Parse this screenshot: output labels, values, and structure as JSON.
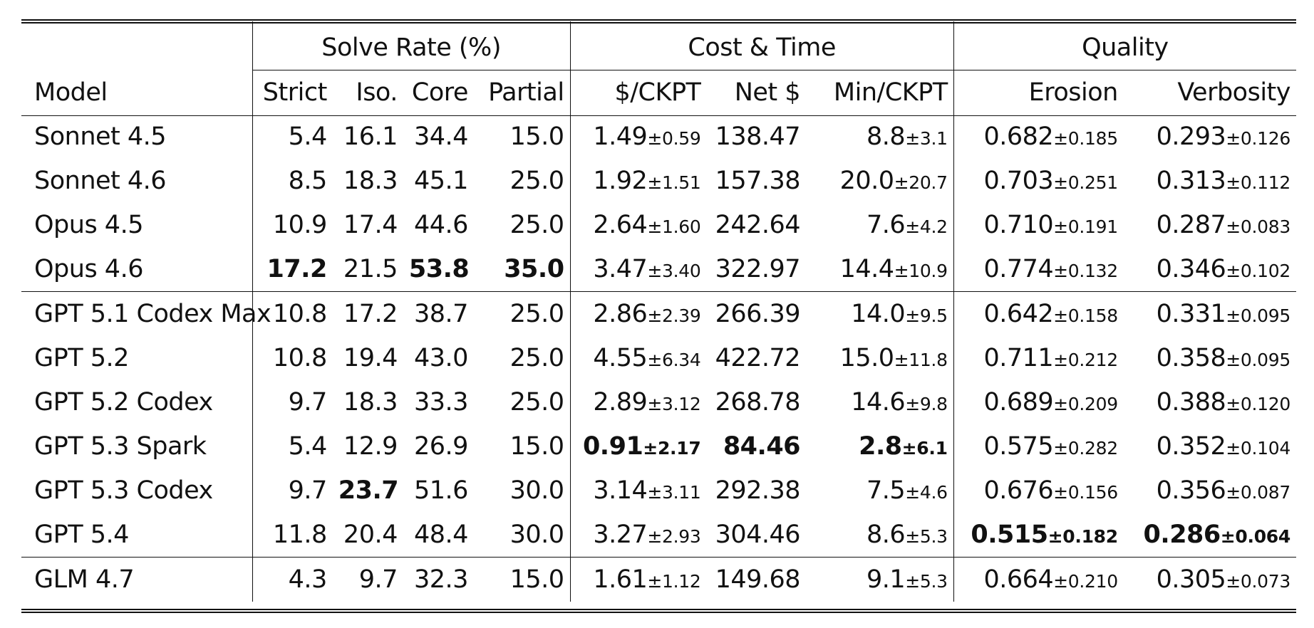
{
  "table": {
    "groups": {
      "solve": "Solve Rate (%)",
      "cost": "Cost & Time",
      "quality": "Quality"
    },
    "headers": {
      "model": "Model",
      "strict": "Strict",
      "iso": "Iso.",
      "core": "Core",
      "partial": "Partial",
      "ckpt_cost": "$/CKPT",
      "net": "Net $",
      "min_ckpt": "Min/CKPT",
      "erosion": "Erosion",
      "verbosity": "Verbosity"
    },
    "rows": [
      {
        "model": "Sonnet 4.5",
        "strict": "5.4",
        "iso": "16.1",
        "core": "34.4",
        "partial": "15.0",
        "ckpt": "1.49",
        "ckpt_sd": "±0.59",
        "net": "138.47",
        "min": "8.8",
        "min_sd": "±3.1",
        "erosion": "0.682",
        "erosion_sd": "±0.185",
        "verb": "0.293",
        "verb_sd": "±0.126"
      },
      {
        "model": "Sonnet 4.6",
        "strict": "8.5",
        "iso": "18.3",
        "core": "45.1",
        "partial": "25.0",
        "ckpt": "1.92",
        "ckpt_sd": "±1.51",
        "net": "157.38",
        "min": "20.0",
        "min_sd": "±20.7",
        "erosion": "0.703",
        "erosion_sd": "±0.251",
        "verb": "0.313",
        "verb_sd": "±0.112"
      },
      {
        "model": "Opus 4.5",
        "strict": "10.9",
        "iso": "17.4",
        "core": "44.6",
        "partial": "25.0",
        "ckpt": "2.64",
        "ckpt_sd": "±1.60",
        "net": "242.64",
        "min": "7.6",
        "min_sd": "±4.2",
        "erosion": "0.710",
        "erosion_sd": "±0.191",
        "verb": "0.287",
        "verb_sd": "±0.083"
      },
      {
        "model": "Opus 4.6",
        "strict": "17.2",
        "iso": "21.5",
        "core": "53.8",
        "partial": "35.0",
        "ckpt": "3.47",
        "ckpt_sd": "±3.40",
        "net": "322.97",
        "min": "14.4",
        "min_sd": "±10.9",
        "erosion": "0.774",
        "erosion_sd": "±0.132",
        "verb": "0.346",
        "verb_sd": "±0.102"
      },
      {
        "model": "GPT 5.1 Codex Max",
        "strict": "10.8",
        "iso": "17.2",
        "core": "38.7",
        "partial": "25.0",
        "ckpt": "2.86",
        "ckpt_sd": "±2.39",
        "net": "266.39",
        "min": "14.0",
        "min_sd": "±9.5",
        "erosion": "0.642",
        "erosion_sd": "±0.158",
        "verb": "0.331",
        "verb_sd": "±0.095"
      },
      {
        "model": "GPT 5.2",
        "strict": "10.8",
        "iso": "19.4",
        "core": "43.0",
        "partial": "25.0",
        "ckpt": "4.55",
        "ckpt_sd": "±6.34",
        "net": "422.72",
        "min": "15.0",
        "min_sd": "±11.8",
        "erosion": "0.711",
        "erosion_sd": "±0.212",
        "verb": "0.358",
        "verb_sd": "±0.095"
      },
      {
        "model": "GPT 5.2 Codex",
        "strict": "9.7",
        "iso": "18.3",
        "core": "33.3",
        "partial": "25.0",
        "ckpt": "2.89",
        "ckpt_sd": "±3.12",
        "net": "268.78",
        "min": "14.6",
        "min_sd": "±9.8",
        "erosion": "0.689",
        "erosion_sd": "±0.209",
        "verb": "0.388",
        "verb_sd": "±0.120"
      },
      {
        "model": "GPT 5.3 Spark",
        "strict": "5.4",
        "iso": "12.9",
        "core": "26.9",
        "partial": "15.0",
        "ckpt": "0.91",
        "ckpt_sd": "±2.17",
        "net": "84.46",
        "min": "2.8",
        "min_sd": "±6.1",
        "erosion": "0.575",
        "erosion_sd": "±0.282",
        "verb": "0.352",
        "verb_sd": "±0.104"
      },
      {
        "model": "GPT 5.3 Codex",
        "strict": "9.7",
        "iso": "23.7",
        "core": "51.6",
        "partial": "30.0",
        "ckpt": "3.14",
        "ckpt_sd": "±3.11",
        "net": "292.38",
        "min": "7.5",
        "min_sd": "±4.6",
        "erosion": "0.676",
        "erosion_sd": "±0.156",
        "verb": "0.356",
        "verb_sd": "±0.087"
      },
      {
        "model": "GPT 5.4",
        "strict": "11.8",
        "iso": "20.4",
        "core": "48.4",
        "partial": "30.0",
        "ckpt": "3.27",
        "ckpt_sd": "±2.93",
        "net": "304.46",
        "min": "8.6",
        "min_sd": "±5.3",
        "erosion": "0.515",
        "erosion_sd": "±0.182",
        "verb": "0.286",
        "verb_sd": "±0.064"
      },
      {
        "model": "GLM 4.7",
        "strict": "4.3",
        "iso": "9.7",
        "core": "32.3",
        "partial": "15.0",
        "ckpt": "1.61",
        "ckpt_sd": "±1.12",
        "net": "149.68",
        "min": "9.1",
        "min_sd": "±5.3",
        "erosion": "0.664",
        "erosion_sd": "±0.210",
        "verb": "0.305",
        "verb_sd": "±0.073"
      }
    ]
  }
}
